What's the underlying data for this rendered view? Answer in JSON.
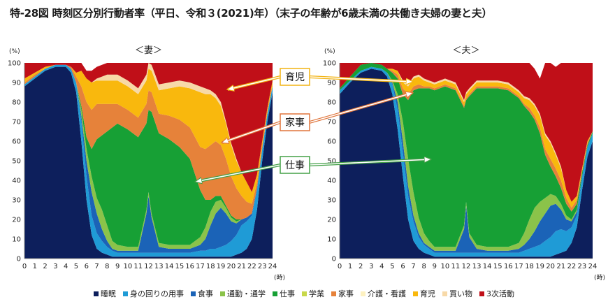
{
  "title": "特-28図 時刻区分別行動者率（平日、令和３(2021)年）（末子の年齢が6歳未満の共働き夫婦の妻と夫）",
  "legend": [
    {
      "name": "睡眠",
      "color": "#0d1f5c"
    },
    {
      "name": "身の回りの用事",
      "color": "#1f9bd6"
    },
    {
      "name": "食事",
      "color": "#1b63b7"
    },
    {
      "name": "通勤・通学",
      "color": "#8bc34a"
    },
    {
      "name": "仕事",
      "color": "#17a035"
    },
    {
      "name": "学業",
      "color": "#c8d84a"
    },
    {
      "name": "家事",
      "color": "#e6823a"
    },
    {
      "name": "介護・看護",
      "color": "#fdf1c0"
    },
    {
      "name": "育児",
      "color": "#f9b80d"
    },
    {
      "name": "買い物",
      "color": "#f7d9a8"
    },
    {
      "name": "3次活動",
      "color": "#c00f18"
    }
  ],
  "callouts": [
    "育児",
    "家事",
    "仕事"
  ],
  "chart_data": [
    {
      "type": "area",
      "stacked": true,
      "title": "＜妻＞",
      "ylabel": "(%)",
      "xlabel": "(時)",
      "ylim": [
        0,
        100
      ],
      "yticks": [
        0,
        10,
        20,
        30,
        40,
        50,
        60,
        70,
        80,
        90,
        100
      ],
      "xticks": [
        0,
        1,
        2,
        3,
        4,
        5,
        6,
        7,
        8,
        9,
        10,
        11,
        12,
        13,
        14,
        15,
        16,
        17,
        18,
        19,
        20,
        21,
        22,
        23,
        24
      ],
      "x": [
        0,
        1,
        2,
        3,
        4,
        4.5,
        5,
        5.5,
        6,
        6.5,
        7,
        7.5,
        8,
        8.5,
        9,
        10,
        11,
        11.8,
        12,
        12.3,
        13,
        14,
        15,
        16,
        17,
        17.5,
        18,
        18.5,
        19,
        19.5,
        20,
        20.5,
        21,
        21.5,
        22,
        22.5,
        23,
        23.5,
        24
      ],
      "series": [
        {
          "name": "睡眠",
          "values": [
            88,
            92,
            96,
            98,
            98,
            95,
            85,
            60,
            30,
            12,
            5,
            3,
            2,
            1,
            1,
            1,
            1,
            1,
            1,
            1,
            1,
            1,
            1,
            1,
            1,
            1,
            1,
            1,
            1,
            1,
            1,
            2,
            3,
            5,
            10,
            25,
            50,
            70,
            85
          ]
        },
        {
          "name": "身の回りの用事",
          "values": [
            1,
            1,
            1,
            1,
            1,
            2,
            5,
            10,
            12,
            10,
            8,
            6,
            4,
            3,
            2,
            2,
            2,
            2,
            2,
            2,
            2,
            2,
            2,
            2,
            3,
            3,
            4,
            4,
            5,
            6,
            8,
            10,
            14,
            14,
            12,
            10,
            6,
            4,
            3
          ]
        },
        {
          "name": "食事",
          "values": [
            0,
            0,
            0,
            0,
            0,
            0,
            0,
            3,
            8,
            12,
            10,
            6,
            3,
            1,
            1,
            1,
            1,
            20,
            29,
            18,
            3,
            2,
            2,
            2,
            3,
            6,
            12,
            18,
            20,
            16,
            10,
            6,
            3,
            2,
            1,
            1,
            0,
            0,
            0
          ]
        },
        {
          "name": "通勤・通学",
          "values": [
            0,
            0,
            0,
            0,
            0,
            0,
            0,
            3,
            6,
            8,
            8,
            10,
            8,
            4,
            3,
            2,
            2,
            2,
            2,
            2,
            2,
            2,
            2,
            2,
            4,
            6,
            7,
            6,
            4,
            3,
            2,
            1,
            0,
            0,
            0,
            0,
            0,
            0,
            0
          ]
        },
        {
          "name": "仕事",
          "values": [
            0,
            0,
            0,
            0,
            0,
            0,
            0,
            2,
            6,
            14,
            30,
            38,
            48,
            58,
            62,
            60,
            56,
            44,
            42,
            52,
            56,
            54,
            50,
            44,
            24,
            14,
            6,
            3,
            2,
            1,
            1,
            1,
            0,
            0,
            0,
            0,
            0,
            0,
            0
          ]
        },
        {
          "name": "学業",
          "values": [
            0,
            0,
            0,
            0,
            0,
            0,
            0,
            0,
            0,
            0,
            0,
            0,
            0,
            0,
            0,
            0,
            0,
            0,
            0,
            0,
            0,
            0,
            0,
            0,
            0,
            0,
            0,
            0,
            0,
            0,
            0,
            0,
            0,
            0,
            0,
            0,
            0,
            0,
            0
          ]
        },
        {
          "name": "家事",
          "values": [
            1,
            1,
            0,
            0,
            0,
            1,
            3,
            10,
            18,
            20,
            18,
            16,
            14,
            12,
            10,
            10,
            10,
            10,
            10,
            10,
            10,
            12,
            14,
            16,
            22,
            26,
            28,
            28,
            26,
            24,
            20,
            16,
            12,
            8,
            5,
            3,
            2,
            1,
            1
          ]
        },
        {
          "name": "介護・看護",
          "values": [
            0,
            0,
            0,
            0,
            0,
            0,
            0,
            0,
            0,
            0,
            0,
            0,
            0,
            0,
            0,
            0,
            0,
            0,
            0,
            0,
            0,
            0,
            0,
            0,
            0,
            0,
            0,
            0,
            0,
            0,
            0,
            0,
            0,
            0,
            0,
            0,
            0,
            0,
            0
          ]
        },
        {
          "name": "育児",
          "values": [
            2,
            1,
            1,
            0,
            0,
            0,
            2,
            8,
            12,
            14,
            12,
            12,
            12,
            12,
            12,
            12,
            12,
            12,
            11,
            11,
            12,
            14,
            17,
            20,
            28,
            28,
            26,
            22,
            20,
            18,
            16,
            14,
            12,
            10,
            6,
            4,
            2,
            2,
            2
          ]
        },
        {
          "name": "買い物",
          "values": [
            0,
            0,
            0,
            0,
            0,
            0,
            0,
            0,
            0,
            0,
            1,
            2,
            3,
            3,
            3,
            3,
            3,
            3,
            3,
            3,
            3,
            3,
            3,
            3,
            3,
            3,
            2,
            2,
            2,
            1,
            1,
            1,
            0,
            0,
            0,
            0,
            0,
            0,
            0
          ]
        },
        {
          "name": "3次活動",
          "values": [
            8,
            5,
            2,
            1,
            1,
            2,
            5,
            4,
            4,
            6,
            6,
            6,
            6,
            6,
            6,
            9,
            13,
            6,
            0,
            1,
            11,
            10,
            9,
            10,
            12,
            13,
            14,
            16,
            20,
            31,
            41,
            49,
            56,
            61,
            66,
            57,
            40,
            23,
            9
          ]
        }
      ]
    },
    {
      "type": "area",
      "stacked": true,
      "title": "＜夫＞",
      "ylabel": "(%)",
      "xlabel": "(時)",
      "ylim": [
        0,
        100
      ],
      "yticks": [
        0,
        10,
        20,
        30,
        40,
        50,
        60,
        70,
        80,
        90,
        100
      ],
      "xticks": [
        0,
        1,
        2,
        3,
        4,
        5,
        6,
        7,
        8,
        9,
        10,
        11,
        12,
        13,
        14,
        15,
        16,
        17,
        18,
        19,
        20,
        21,
        22,
        23,
        24
      ],
      "x": [
        0,
        1,
        2,
        3,
        4,
        4.5,
        5,
        5.5,
        6,
        6.5,
        7,
        7.5,
        8,
        8.5,
        9,
        10,
        11,
        11.8,
        12,
        12.3,
        13,
        14,
        15,
        16,
        17,
        17.5,
        18,
        18.5,
        19,
        19.5,
        20,
        20.5,
        21,
        21.5,
        22,
        22.5,
        23,
        23.5,
        24
      ],
      "series": [
        {
          "name": "睡眠",
          "values": [
            84,
            90,
            95,
            97,
            96,
            93,
            84,
            66,
            42,
            20,
            9,
            5,
            3,
            2,
            1,
            1,
            1,
            1,
            1,
            1,
            1,
            1,
            1,
            1,
            1,
            1,
            1,
            1,
            1,
            1,
            1,
            2,
            3,
            4,
            8,
            16,
            35,
            52,
            60
          ]
        },
        {
          "name": "身の回りの用事",
          "values": [
            2,
            1,
            1,
            1,
            1,
            2,
            5,
            10,
            12,
            12,
            10,
            6,
            4,
            3,
            2,
            2,
            2,
            2,
            2,
            2,
            2,
            2,
            2,
            2,
            2,
            3,
            4,
            5,
            6,
            8,
            10,
            12,
            12,
            10,
            8,
            6,
            6,
            5,
            4
          ]
        },
        {
          "name": "食事",
          "values": [
            0,
            0,
            0,
            0,
            0,
            0,
            1,
            4,
            6,
            5,
            3,
            2,
            1,
            1,
            1,
            1,
            1,
            12,
            24,
            8,
            2,
            1,
            1,
            1,
            2,
            3,
            5,
            8,
            12,
            14,
            16,
            14,
            10,
            6,
            3,
            2,
            1,
            0,
            0
          ]
        },
        {
          "name": "通勤・通学",
          "values": [
            0,
            0,
            0,
            0,
            0,
            0,
            1,
            4,
            10,
            14,
            12,
            8,
            5,
            3,
            2,
            2,
            2,
            2,
            2,
            2,
            2,
            2,
            2,
            2,
            3,
            6,
            10,
            12,
            10,
            8,
            6,
            4,
            3,
            2,
            1,
            1,
            0,
            0,
            0
          ]
        },
        {
          "name": "仕事",
          "values": [
            1,
            2,
            3,
            2,
            2,
            2,
            4,
            8,
            14,
            30,
            52,
            66,
            74,
            78,
            80,
            82,
            80,
            60,
            52,
            70,
            80,
            81,
            81,
            80,
            74,
            65,
            55,
            45,
            35,
            22,
            14,
            10,
            8,
            6,
            4,
            3,
            2,
            1,
            1
          ]
        },
        {
          "name": "学業",
          "values": [
            0,
            0,
            0,
            0,
            0,
            0,
            0,
            0,
            0,
            0,
            0,
            0,
            0,
            0,
            0,
            0,
            0,
            0,
            0,
            0,
            0,
            0,
            0,
            0,
            0,
            0,
            0,
            0,
            0,
            0,
            0,
            0,
            0,
            0,
            0,
            0,
            0,
            0,
            0
          ]
        },
        {
          "name": "家事",
          "values": [
            0,
            0,
            0,
            0,
            0,
            0,
            1,
            2,
            3,
            3,
            2,
            2,
            1,
            1,
            1,
            1,
            1,
            1,
            1,
            1,
            1,
            1,
            1,
            1,
            1,
            1,
            2,
            2,
            3,
            3,
            4,
            4,
            4,
            3,
            2,
            2,
            1,
            1,
            0
          ]
        },
        {
          "name": "介護・看護",
          "values": [
            0,
            0,
            0,
            0,
            0,
            0,
            0,
            0,
            0,
            0,
            0,
            0,
            0,
            0,
            0,
            0,
            0,
            0,
            0,
            0,
            0,
            0,
            0,
            0,
            0,
            0,
            0,
            0,
            0,
            0,
            0,
            0,
            0,
            0,
            0,
            0,
            0,
            0,
            0
          ]
        },
        {
          "name": "育児",
          "values": [
            0,
            0,
            0,
            0,
            0,
            0,
            1,
            2,
            3,
            4,
            4,
            4,
            3,
            2,
            2,
            2,
            2,
            2,
            2,
            2,
            2,
            2,
            2,
            2,
            2,
            3,
            4,
            5,
            6,
            7,
            8,
            7,
            6,
            4,
            3,
            2,
            1,
            1,
            0
          ]
        },
        {
          "name": "買い物",
          "values": [
            0,
            0,
            0,
            0,
            0,
            0,
            0,
            0,
            1,
            1,
            1,
            1,
            1,
            1,
            1,
            1,
            1,
            1,
            1,
            1,
            1,
            1,
            1,
            1,
            1,
            1,
            1,
            1,
            1,
            1,
            1,
            1,
            1,
            0,
            0,
            0,
            0,
            0,
            0
          ]
        },
        {
          "name": "3次活動",
          "values": [
            13,
            7,
            1,
            0,
            1,
            3,
            3,
            4,
            9,
            11,
            7,
            6,
            8,
            9,
            10,
            8,
            10,
            19,
            15,
            13,
            9,
            9,
            9,
            10,
            14,
            17,
            18,
            18,
            18,
            36,
            40,
            44,
            53,
            65,
            71,
            68,
            54,
            40,
            35
          ]
        }
      ]
    }
  ]
}
